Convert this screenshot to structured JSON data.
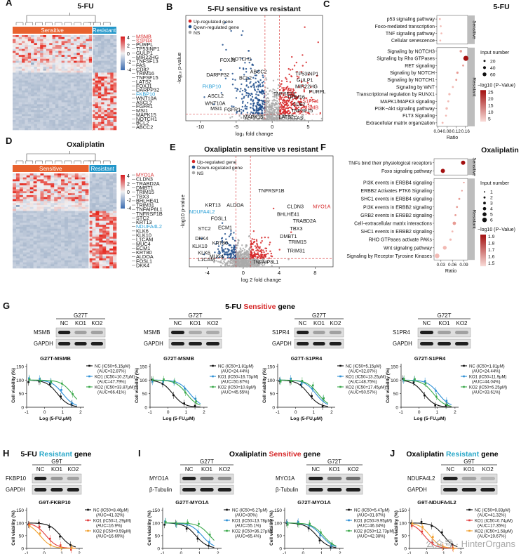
{
  "panels": {
    "A": {
      "letter": "A",
      "title": "5-FU",
      "group_sens": "Sensitive",
      "group_res": "Resistant",
      "genes": [
        "MSMB",
        "S1PR4",
        "PURPL",
        "TP53INP1",
        "GULP1",
        "MIR22HG",
        "TNFSF13",
        "FAS",
        "CD82",
        "TRIM16",
        "TNFSF15",
        "LATS2",
        "FOXJ1",
        "DARPP32",
        "FKBP10",
        "WNT10A",
        "ASCL2",
        "FGFR1",
        "MSI1",
        "MAPK15",
        "NOTCH1",
        "BCL2",
        "ABCC2"
      ],
      "gene_colors": {
        "MSMB": "#d62728",
        "S1PR4": "#d62728",
        "FKBP10": "#2a9fd6"
      },
      "scale": [
        "4",
        "2",
        "0",
        "-2",
        "-4"
      ]
    },
    "B": {
      "letter": "B",
      "title": "5-FU sensitive vs resistant",
      "legend": [
        "Up-regulated gene",
        "Down-regulated gene",
        "NS"
      ],
      "xlabel": "log₂ fold change",
      "ylabel": "-log₁₀ p-value",
      "xticks": [
        "-10",
        "-5",
        "0",
        "5"
      ],
      "labels": [
        "FOXJ1",
        "NOTCH1",
        "DARPP32",
        "ABCC2",
        "BCL2",
        "FKBP10",
        "ASCL2",
        "WNT10A",
        "MSI1",
        "FGFR1",
        "MAPK15",
        "TP53INP1",
        "GULP1",
        "MIR22HG",
        "PURPL",
        "TNFSF13",
        "TRIM16",
        "S1PR4",
        "CD82",
        "MSMB",
        "TNFSF15",
        "LATS2",
        "FAS"
      ]
    },
    "C": {
      "letter": "C",
      "title": "5-FU",
      "sens_terms": [
        "p53 signaling pathway",
        "Foxo-mediated transcription",
        "TNF signaling pathway",
        "Cellular senescence"
      ],
      "res_terms": [
        "Signaling by NOTCH3",
        "Signaling by Rho GTPases",
        "RET signaling",
        "Signaling by NOTCH",
        "Signaling by NOTCH1",
        "Signaling by WNT",
        "Transcriptional regulation by RUNX1",
        "MAPK1/MAPK3 signaling",
        "PI3K−Akt signaling pathway",
        "FLT3 Signaling",
        "Extracellular matrix organization"
      ],
      "strip_sens": "Sensitive",
      "strip_res": "Resistant",
      "xlabel": "Ratio",
      "xticks": [
        "0.04",
        "0.08",
        "0.12",
        "0.16"
      ],
      "size_title": "Input number",
      "sizes": [
        "20",
        "40",
        "60"
      ],
      "color_title": "−log10 (P−Value)",
      "color_ticks": [
        "25",
        "20",
        "15",
        "10",
        "5"
      ]
    },
    "D": {
      "letter": "D",
      "title": "Oxaliplatin",
      "group_sens": "Sensitive",
      "group_res": "Resistant",
      "genes": [
        "MYO1A",
        "CLDN3",
        "TRABD2A",
        "DMBT1",
        "TRIM15",
        "TBX3",
        "BHLHE41",
        "TRIM31",
        "TNFAIP8L1",
        "TNFRSF1B",
        "STC2",
        "KRT13",
        "NDUFA4L2",
        "KLK6",
        "KLK10",
        "L1CAM",
        "MUC4",
        "ECM1",
        "KRT80",
        "ALDOA",
        "FOSL1",
        "DKK4"
      ],
      "gene_colors": {
        "MYO1A": "#d62728",
        "NDUFA4L2": "#2a9fd6"
      },
      "scale": [
        "4",
        "2",
        "0",
        "-2",
        "-4"
      ]
    },
    "E": {
      "letter": "E",
      "title": "Oxaliplatin sensitive vs resistant",
      "legend": [
        "Up-regulated gene",
        "Down-regulated gene",
        "NS"
      ],
      "xlabel": "log 2 fold change",
      "ylabel": "-log10 p-value",
      "xticks": [
        "-4",
        "0",
        "4",
        "8"
      ],
      "labels": [
        "KRT13",
        "ALDOA",
        "NDUFA4L2",
        "FOSL1",
        "ECM1",
        "STC2",
        "DKK4",
        "KRT80",
        "KLK10",
        "KLK6",
        "L1CAM",
        "MUC4",
        "TNFRSF1B",
        "CLDN3",
        "MYO1A",
        "BHLHE41",
        "TRABD2A",
        "TBX3",
        "DMBT1",
        "TRIM15",
        "TRIM31",
        "TNFAIP8L1"
      ]
    },
    "F": {
      "letter": "F",
      "title": "Oxaliplatin",
      "sens_terms": [
        "TNFs bind their physiological receptors",
        "Foxo signaling pathway"
      ],
      "res_terms": [
        "PI3K events in ERBB4 signaling",
        "ERBB2 Activates PTK6 Signaling",
        "SHC1 events in ERBB4 signaling",
        "PI3K events in ERBB2 signaling",
        "GRB2 events in ERBB2 signaling",
        "Cell−extracellular matrix interactions",
        "SHC1 events in ERBB2 signaling",
        "RHO GTPases activate PAKs",
        "Wnt signaling pathway",
        "Signaling by Receptor Tyrosine Kinases"
      ],
      "strip_sens": "Sensitive",
      "strip_res": "Resistant",
      "xlabel": "Ratio",
      "xticks": [
        "0.03",
        "0.06",
        "0.09"
      ],
      "size_title": "Input number",
      "sizes": [
        "1",
        "2",
        "3",
        "4",
        "5",
        "6"
      ],
      "color_title": "−log10 (P−Value)",
      "color_ticks": [
        "1.9",
        "1.8",
        "1.7",
        "1.6",
        "1.5"
      ]
    },
    "G": {
      "letter": "G",
      "title_a": "5-FU ",
      "title_b": "Sensitive",
      "title_c": " gene",
      "blots": [
        {
          "line": "G27T",
          "lanes": [
            "NC",
            "KO1",
            "KO2"
          ],
          "rows": [
            "MSMB",
            "GAPDH"
          ]
        },
        {
          "line": "G72T",
          "lanes": [
            "NC",
            "KO1",
            "KO2"
          ],
          "rows": [
            "MSMB",
            "GAPDH"
          ]
        },
        {
          "line": "G27T",
          "lanes": [
            "NC",
            "KO1",
            "KO2"
          ],
          "rows": [
            "S1PR4",
            "GAPDH"
          ]
        },
        {
          "line": "G72T",
          "lanes": [
            "NC",
            "KO1",
            "KO2"
          ],
          "rows": [
            "S1PR4",
            "GAPDH"
          ]
        }
      ],
      "curves": [
        {
          "title": "G27T-MSMB",
          "xlabel": "Log (5-FU,μM)",
          "legend": [
            [
              "NC (IC50=5.15μM)",
              "(AUC=32.87%)"
            ],
            [
              "KO1 (IC50=10.27μM)",
              "(AUC=47.79%)"
            ],
            [
              "KO2 (IC50=33.87μM)",
              "(AUC=66.41%)"
            ]
          ],
          "ic50": [
            0.71,
            1.01,
            1.53
          ]
        },
        {
          "title": "G72T-MSMB",
          "xlabel": "Log (5-FU,μM)",
          "legend": [
            [
              "NC (IC50=1.81μM)",
              "(AUC=24.44%)"
            ],
            [
              "KO1 (IC50=16.73μM)",
              "(AUC=50.87%)"
            ],
            [
              "KO2 (IC50=10.8μM)",
              "(AUC=45.55%)"
            ]
          ],
          "ic50": [
            0.26,
            1.22,
            1.03
          ]
        },
        {
          "title": "G27T-S1PR4",
          "xlabel": "Log (5-FU,μM)",
          "legend": [
            [
              "NC (IC50=5.15μM)",
              "(AUC=32.87%)"
            ],
            [
              "KO1 (IC50=13.25μM)",
              "(AUC=48.75%)"
            ],
            [
              "KO2 (IC50=17.45μM)",
              "(AUC=50.57%)"
            ]
          ],
          "ic50": [
            0.71,
            1.12,
            1.24
          ]
        },
        {
          "title": "G72T-S1PR4",
          "xlabel": "Log (5-FU,μM)",
          "legend": [
            [
              "NC (IC50=1.81μM)",
              "(AUC=24.44%)"
            ],
            [
              "KO1 (IC50=11.9μM)",
              "(AUC=44.04%)"
            ],
            [
              "KO2 (IC50=6.25μM)",
              "(AUC=33.61%)"
            ]
          ],
          "ic50": [
            0.26,
            1.08,
            0.8
          ]
        }
      ]
    },
    "H": {
      "letter": "H",
      "title_a": "5-FU ",
      "title_b": "Resistant",
      "title_c": " gene",
      "blot": {
        "line": "G9T",
        "lanes": [
          "NC",
          "KO1",
          "KO2"
        ],
        "rows": [
          "FKBP10",
          "GAPDH"
        ]
      },
      "curve": {
        "title": "G9T-FKBP10",
        "xlabel": "Log (5-FU,μM)",
        "legend": [
          [
            "NC (IC50=8.46μM)",
            "(AUC=41.32%)"
          ],
          [
            "KO1 (IC50=1.29μM)",
            "(AUC=16.9%)"
          ],
          [
            "KO2 (IC50=0.59μM)",
            "(AUC=16.69%)"
          ]
        ],
        "ic50": [
          0.93,
          0.11,
          -0.23
        ]
      }
    },
    "I": {
      "letter": "I",
      "title_a": "Oxaliplatin ",
      "title_b": "Sensitive",
      "title_c": " gene",
      "blots": [
        {
          "line": "G27T",
          "lanes": [
            "NC",
            "KO1",
            "KO2"
          ],
          "rows": [
            "MYO1A",
            "β-Tubulin"
          ]
        },
        {
          "line": "G72T",
          "lanes": [
            "NC",
            "KO1",
            "KO2"
          ],
          "rows": [
            "MYO1A",
            "β-Tubulin"
          ]
        }
      ],
      "curves": [
        {
          "title": "G27T-MYO1A",
          "xlabel": "Log (Oxaliplatin,μM)",
          "legend": [
            [
              "NC (IC50=6.27μM)",
              "(AUC=30%)"
            ],
            [
              "KO1 (IC50=13.78μM)",
              "(AUC=55.1%)"
            ],
            [
              "KO2 (IC50=36.27μM)",
              "(AUC=65.4%)"
            ]
          ],
          "ic50": [
            0.8,
            1.14,
            1.56
          ]
        },
        {
          "title": "G72T-MYO1A",
          "xlabel": "Log (Oxaliplatin,μM)",
          "legend": [
            [
              "NC (IC50=5.47μM)",
              "(AUC=31.87%)"
            ],
            [
              "KO1 (IC50=9.95μM)",
              "(AUC=46.34%)"
            ],
            [
              "KO2 (IC50=12.73μM)",
              "(AUC=42.38%)"
            ]
          ],
          "ic50": [
            0.74,
            1.0,
            1.1
          ]
        }
      ]
    },
    "J": {
      "letter": "J",
      "title_a": "Oxaliplatin ",
      "title_b": "Resistant",
      "title_c": " gene",
      "blot": {
        "line": "G9T",
        "lanes": [
          "NC",
          "KO1",
          "KO2"
        ],
        "rows": [
          "NDUFA4L2",
          "GAPDH"
        ]
      },
      "curve": {
        "title": "G9T-NDUFA4L2",
        "xlabel": "Log (Oxaliplatin,μM)",
        "legend": [
          [
            "NC (IC50=9.83μM)",
            "(AUC=41.32%)"
          ],
          [
            "KO1 (IC50=0.74μM)",
            "(AUC=17.35%)"
          ],
          [
            "KO2 (IC50=1.58μM)",
            "(AUC=19.67%)"
          ]
        ],
        "ic50": [
          0.99,
          -0.13,
          0.2
        ]
      }
    },
    "common": {
      "ylabel_curve": "Cell viability (%)",
      "yticks": [
        "0",
        "50",
        "100",
        "150"
      ],
      "xticks": [
        "-1",
        "0",
        "1",
        "2"
      ]
    }
  },
  "watermark": "公众号 · HinterOrgans",
  "colors": {
    "red": "#d62728",
    "blue": "#2a9fd6",
    "heat_red": "#d7191c",
    "heat_orange": "#ef6a3a",
    "nc": "#111111",
    "ko1": "#2d8fd5",
    "ko2": "#3aa84a",
    "ko2_h": "#f0a030"
  }
}
